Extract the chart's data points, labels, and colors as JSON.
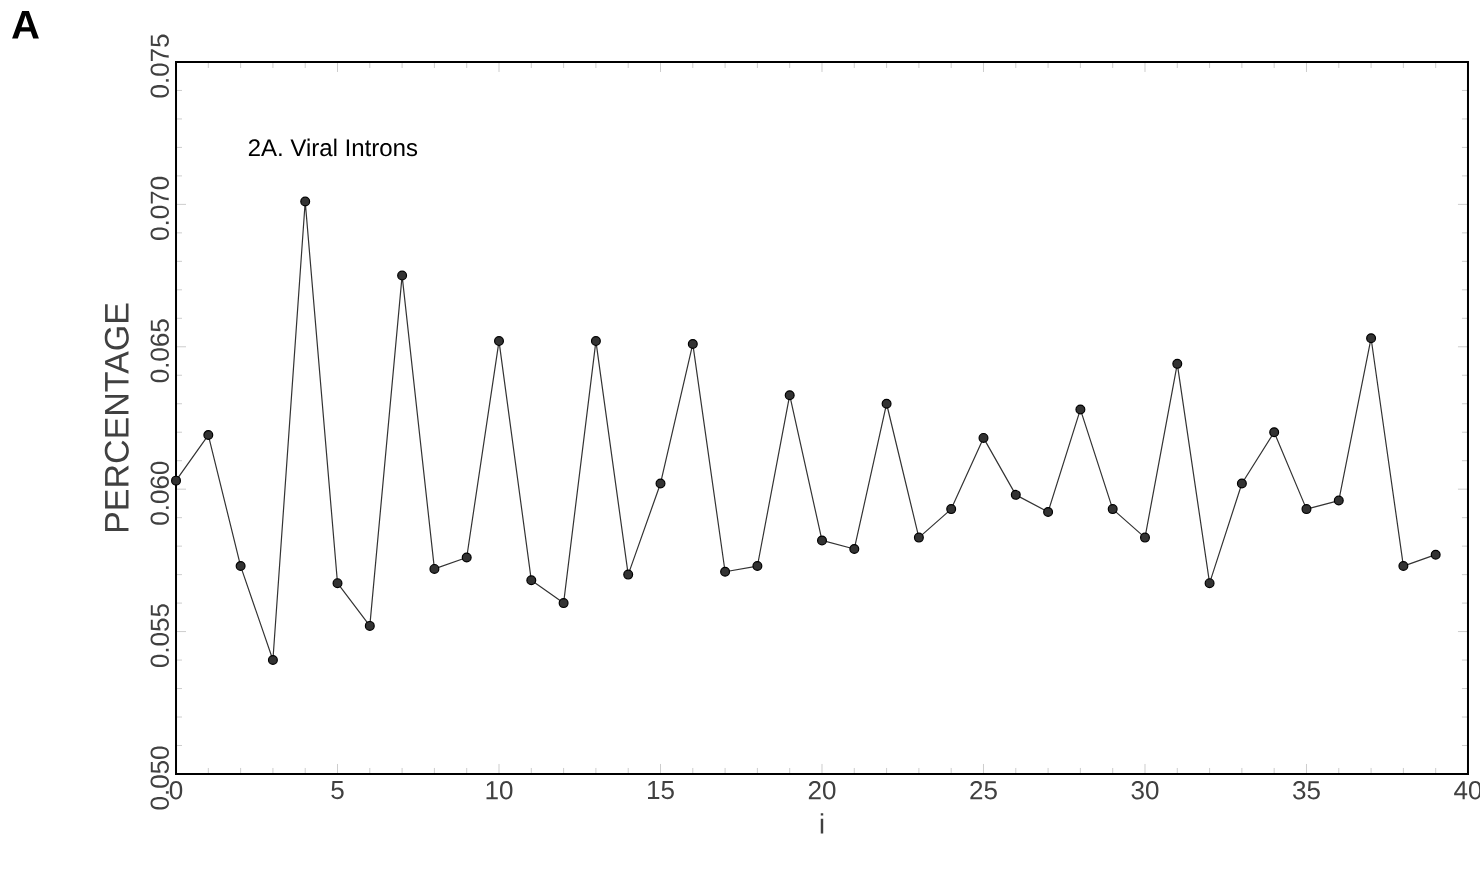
{
  "chart_data": {
    "type": "line",
    "xlabel": "i",
    "ylabel": "PERCENTAGE",
    "annotations": [
      "A",
      "2A. Viral Introns"
    ],
    "x": [
      0,
      1,
      2,
      3,
      4,
      5,
      6,
      7,
      8,
      9,
      10,
      11,
      12,
      13,
      14,
      15,
      16,
      17,
      18,
      19,
      20,
      21,
      22,
      23,
      24,
      25,
      26,
      27,
      28,
      29,
      30,
      31,
      32,
      33,
      34,
      35,
      36,
      37,
      38,
      39
    ],
    "series": [
      {
        "color": "#333333",
        "values": [
          0.0603,
          0.0619,
          0.0573,
          0.054,
          0.0701,
          0.0567,
          0.0552,
          0.0675,
          0.0572,
          0.0576,
          0.0652,
          0.0568,
          0.056,
          0.0652,
          0.057,
          0.0602,
          0.0651,
          0.0571,
          0.0573,
          0.0633,
          0.0582,
          0.0579,
          0.063,
          0.0583,
          0.0593,
          0.0618,
          0.0598,
          0.0592,
          0.0628,
          0.0593,
          0.0583,
          0.0644,
          0.0567,
          0.0602,
          0.062,
          0.0593,
          0.0596,
          0.0653,
          0.0573,
          0.0577
        ]
      }
    ],
    "xlim": [
      0,
      40
    ],
    "ylim": [
      0.05,
      0.075
    ],
    "xticks": [
      0,
      5,
      10,
      15,
      20,
      25,
      30,
      35,
      40
    ],
    "yticks": [
      {
        "value": 0.05,
        "label": "0.050"
      },
      {
        "value": 0.055,
        "label": "0.055"
      },
      {
        "value": 0.06,
        "label": "0.060"
      },
      {
        "value": 0.065,
        "label": "0.065"
      },
      {
        "value": 0.07,
        "label": "0.070"
      },
      {
        "value": 0.075,
        "label": "0.075"
      }
    ],
    "marker": "circle",
    "line_style": "solid"
  }
}
